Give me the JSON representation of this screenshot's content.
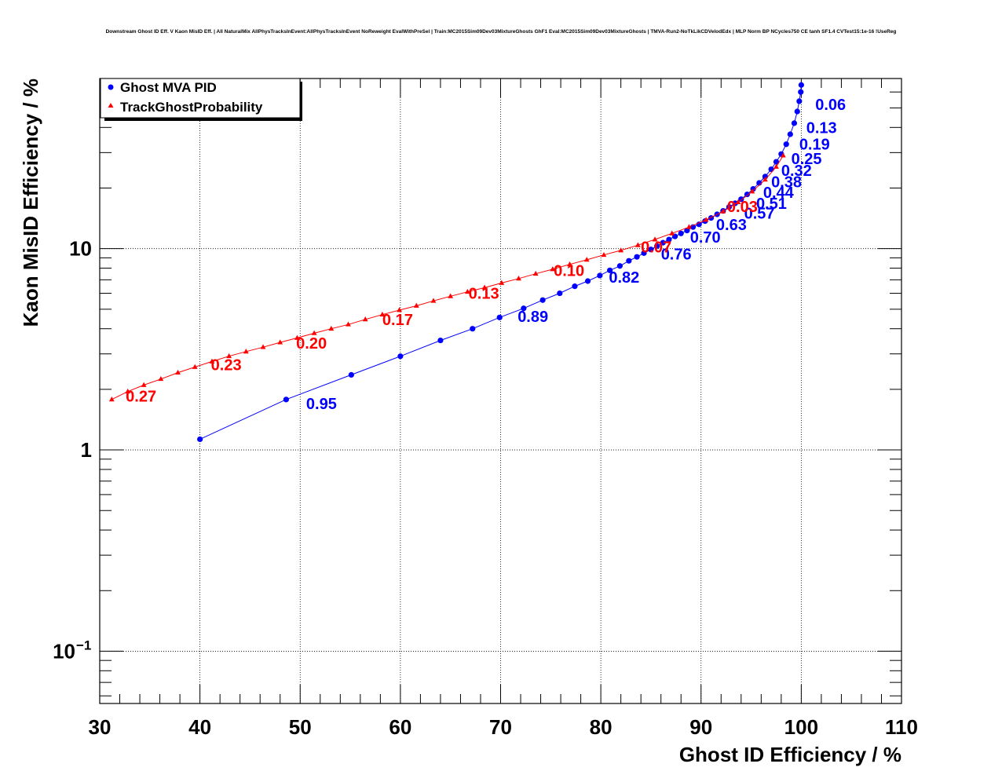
{
  "chart_data": {
    "type": "scatter",
    "title": "Downstream Ghost ID Eff. V Kaon MisID Eff. | All NaturalMix AllPhysTracksInEvent:AllPhysTracksInEvent NoReweight EvalWithPreSel | Train:MC2015Sim09Dev03MixtureGhosts GhF1 Eval:MC2015Sim09Dev03MixtureGhosts | TMVA-Run2-NoTkLikCDVelodEdx | MLP Norm BP NCycles750 CE tanh SF1.4 CVTest15:1e-16 !UseReg",
    "xlabel": "Ghost ID Efficiency / %",
    "ylabel": "Kaon MisID Efficiency / %",
    "xlim": [
      30,
      110
    ],
    "ylim": [
      0.055,
      70
    ],
    "y_scale": "log",
    "grid": true,
    "x_ticks": [
      "30",
      "40",
      "50",
      "60",
      "70",
      "80",
      "90",
      "100",
      "110"
    ],
    "y_ticks": [
      {
        "value": 0.1,
        "base": "10",
        "exp": "−1"
      },
      {
        "value": 1,
        "base": "1",
        "exp": ""
      },
      {
        "value": 10,
        "base": "10",
        "exp": ""
      }
    ],
    "legend_position": "top-left",
    "series": [
      {
        "name": "Ghost MVA PID",
        "color": "#0000ff",
        "marker": "circle",
        "x": [
          40.0,
          48.6,
          55.1,
          60.0,
          64.0,
          67.2,
          69.9,
          72.3,
          74.2,
          75.9,
          77.4,
          78.7,
          79.9,
          80.9,
          81.9,
          82.8,
          83.6,
          84.3,
          85.0,
          85.6,
          86.2,
          86.8,
          87.4,
          88.0,
          88.6,
          89.2,
          89.8,
          90.4,
          91.0,
          91.6,
          92.2,
          92.8,
          93.4,
          94.0,
          94.6,
          95.2,
          95.8,
          96.4,
          97.0,
          97.5,
          98.0,
          98.5,
          98.9,
          99.3,
          99.6,
          99.8,
          99.95,
          100.0
        ],
        "y": [
          1.13,
          1.78,
          2.36,
          2.92,
          3.5,
          4.0,
          4.55,
          5.05,
          5.55,
          6.0,
          6.5,
          6.9,
          7.35,
          7.8,
          8.2,
          8.7,
          9.1,
          9.5,
          9.9,
          10.3,
          10.7,
          11.1,
          11.5,
          11.9,
          12.3,
          12.8,
          13.2,
          13.7,
          14.2,
          14.8,
          15.4,
          16.1,
          16.8,
          17.6,
          18.6,
          19.8,
          21.2,
          22.8,
          24.8,
          27.0,
          29.5,
          33.0,
          37.0,
          42.0,
          48.0,
          54.0,
          60.0,
          65.0
        ]
      },
      {
        "name": "TrackGhostProbability",
        "color": "#ff0000",
        "marker": "triangle",
        "x": [
          31.2,
          32.8,
          34.4,
          36.1,
          37.8,
          39.5,
          41.2,
          42.9,
          44.6,
          46.3,
          48.0,
          49.7,
          51.4,
          53.1,
          54.8,
          56.5,
          58.2,
          59.9,
          61.6,
          63.3,
          65.0,
          66.7,
          68.4,
          70.1,
          71.8,
          73.5,
          75.2,
          76.9,
          78.6,
          80.3,
          82.0,
          83.7,
          85.4,
          87.1,
          88.8,
          90.5,
          92.2,
          93.7,
          95.1,
          96.4,
          97.5,
          98.2
        ],
        "y": [
          1.78,
          1.95,
          2.1,
          2.25,
          2.42,
          2.58,
          2.75,
          2.92,
          3.08,
          3.24,
          3.42,
          3.6,
          3.8,
          4.0,
          4.2,
          4.45,
          4.7,
          4.95,
          5.2,
          5.5,
          5.8,
          6.1,
          6.4,
          6.75,
          7.1,
          7.5,
          7.9,
          8.35,
          8.8,
          9.3,
          9.8,
          10.4,
          11.1,
          11.9,
          12.8,
          13.9,
          15.3,
          17.0,
          19.2,
          22.0,
          25.5,
          29.0
        ]
      }
    ],
    "annotations": [
      {
        "text": "0.06",
        "color": "#0000ff",
        "x": 101.4,
        "y": 52.0
      },
      {
        "text": "0.13",
        "color": "#0000ff",
        "x": 100.5,
        "y": 40.0
      },
      {
        "text": "0.19",
        "color": "#0000ff",
        "x": 99.8,
        "y": 33.0
      },
      {
        "text": "0.25",
        "color": "#0000ff",
        "x": 99.0,
        "y": 28.0
      },
      {
        "text": "0.32",
        "color": "#0000ff",
        "x": 98.0,
        "y": 24.5
      },
      {
        "text": "0.38",
        "color": "#0000ff",
        "x": 97.0,
        "y": 21.5
      },
      {
        "text": "0.44",
        "color": "#0000ff",
        "x": 96.2,
        "y": 19.0
      },
      {
        "text": "0.51",
        "color": "#0000ff",
        "x": 95.5,
        "y": 16.8
      },
      {
        "text": "0.57",
        "color": "#0000ff",
        "x": 94.3,
        "y": 15.0
      },
      {
        "text": "0.63",
        "color": "#0000ff",
        "x": 91.5,
        "y": 13.2
      },
      {
        "text": "0.70",
        "color": "#0000ff",
        "x": 88.9,
        "y": 11.4
      },
      {
        "text": "0.76",
        "color": "#0000ff",
        "x": 86.0,
        "y": 9.4
      },
      {
        "text": "0.82",
        "color": "#0000ff",
        "x": 80.8,
        "y": 7.2
      },
      {
        "text": "0.89",
        "color": "#0000ff",
        "x": 71.7,
        "y": 4.6
      },
      {
        "text": "0.95",
        "color": "#0000ff",
        "x": 50.6,
        "y": 1.7
      },
      {
        "text": "0.03",
        "color": "#ff0000",
        "x": 92.6,
        "y": 16.2
      },
      {
        "text": "0.07",
        "color": "#ff0000",
        "x": 84.0,
        "y": 10.2
      },
      {
        "text": "0.10",
        "color": "#ff0000",
        "x": 75.3,
        "y": 7.8
      },
      {
        "text": "0.13",
        "color": "#ff0000",
        "x": 66.8,
        "y": 6.0
      },
      {
        "text": "0.17",
        "color": "#ff0000",
        "x": 58.2,
        "y": 4.45
      },
      {
        "text": "0.20",
        "color": "#ff0000",
        "x": 49.6,
        "y": 3.4
      },
      {
        "text": "0.23",
        "color": "#ff0000",
        "x": 41.1,
        "y": 2.65
      },
      {
        "text": "0.27",
        "color": "#ff0000",
        "x": 32.6,
        "y": 1.85
      }
    ]
  }
}
